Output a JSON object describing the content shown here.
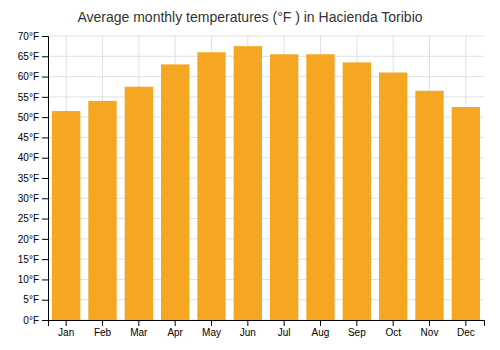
{
  "chart_data": {
    "type": "bar",
    "title": "Average monthly temperatures (°F ) in Hacienda Toribio",
    "categories": [
      "Jan",
      "Feb",
      "Mar",
      "Apr",
      "May",
      "Jun",
      "Jul",
      "Aug",
      "Sep",
      "Oct",
      "Nov",
      "Dec"
    ],
    "values": [
      51.5,
      54.0,
      57.5,
      63.0,
      66.0,
      67.5,
      65.5,
      65.5,
      63.5,
      61.0,
      56.5,
      52.5
    ],
    "color": "#F5A623",
    "ylim": [
      0,
      70
    ],
    "yticks": [
      {
        "value": 0,
        "label": "0°F"
      },
      {
        "value": 5,
        "label": "5°F"
      },
      {
        "value": 10,
        "label": "10°F"
      },
      {
        "value": 15,
        "label": "15°F"
      },
      {
        "value": 20,
        "label": "20°F"
      },
      {
        "value": 25,
        "label": "25°F"
      },
      {
        "value": 30,
        "label": "30°F"
      },
      {
        "value": 35,
        "label": "35°F"
      },
      {
        "value": 40,
        "label": "40°F"
      },
      {
        "value": 45,
        "label": "45°F"
      },
      {
        "value": 50,
        "label": "50°F"
      },
      {
        "value": 55,
        "label": "55°F"
      },
      {
        "value": 60,
        "label": "60°F"
      },
      {
        "value": 65,
        "label": "65°F"
      },
      {
        "value": 70,
        "label": "70°F"
      }
    ],
    "grid": true
  }
}
